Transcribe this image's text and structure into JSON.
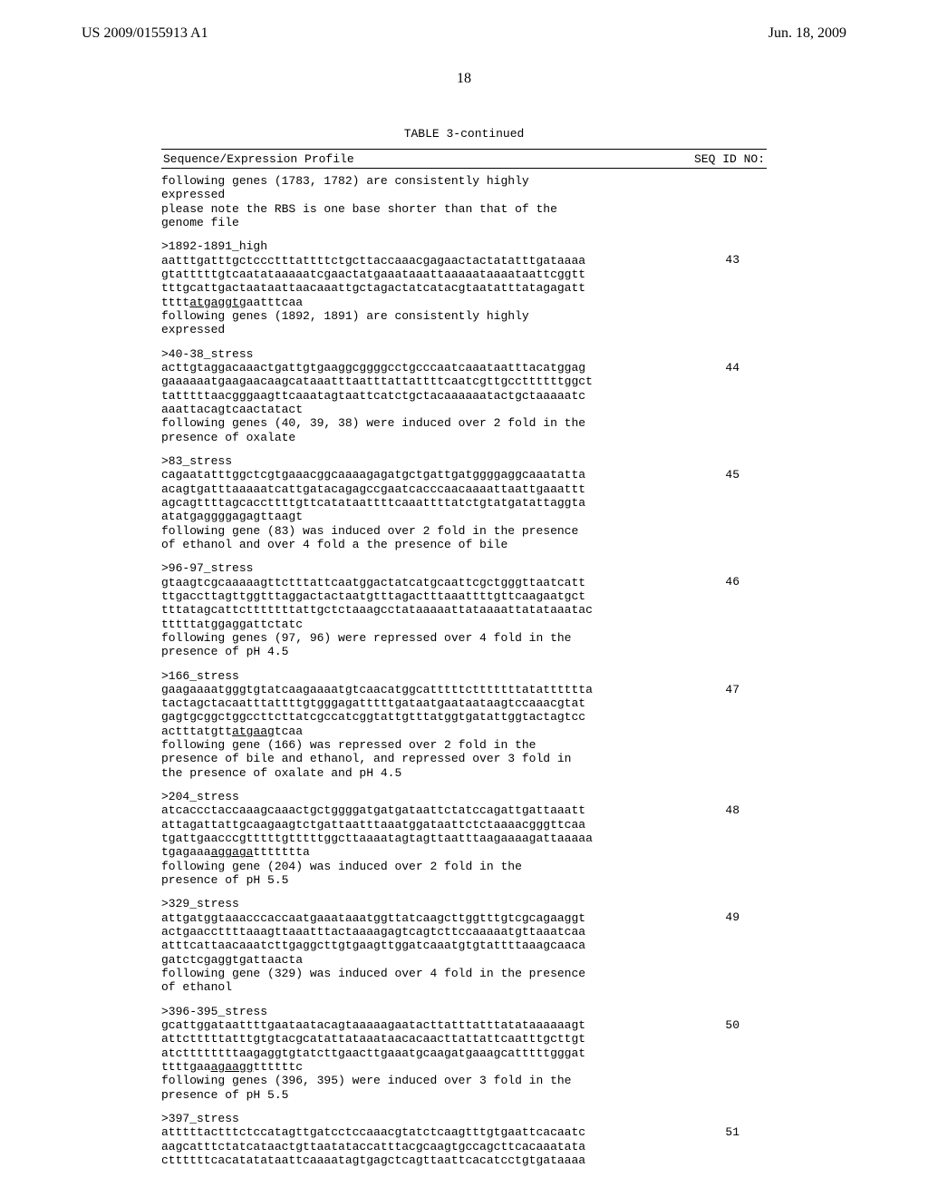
{
  "header": {
    "left": "US 2009/0155913 A1",
    "right": "Jun. 18, 2009",
    "page_number": "18"
  },
  "table": {
    "caption": "TABLE 3-continued",
    "col_left": "Sequence/Expression Profile",
    "col_right": "SEQ ID NO:",
    "rule_color": "#000000",
    "font_family": "Courier New",
    "font_size_pt": 10
  },
  "continuation": {
    "lines": [
      "following genes (1783, 1782) are consistently highly",
      "expressed",
      "please note the RBS is one base shorter than that of the",
      "genome file"
    ]
  },
  "entries": [
    {
      "seq_id": "43",
      "lines": [
        ">1892-1891_high",
        "aatttgatttgctccctttattttctgcttaccaaacgagaactactatatttgataaaa",
        "gtatttttgtcaatataaaaatcgaactatgaaataaattaaaaataaaataattcggtt",
        "tttgcattgactaataattaacaaattgctagactatcatacgtaatatttatagagatt",
        {
          "pre": "tttt",
          "u": "atgaggtg",
          "post": "aatttcaa"
        },
        "following genes (1892, 1891) are consistently highly",
        "expressed"
      ]
    },
    {
      "seq_id": "44",
      "lines": [
        ">40-38_stress",
        "acttgtaggacaaactgattgtgaaggcggggcctgcccaatcaaataatttacatggag",
        "gaaaaaatgaagaacaagcataaatttaatttattattttcaatcgttgccttttttggct",
        "tatttttaacgggaagttcaaatagtaattcatctgctacaaaaaatactgctaaaaatc",
        "aaattacagtcaactatact",
        "following genes (40, 39, 38) were induced over 2 fold in the",
        "presence of oxalate"
      ]
    },
    {
      "seq_id": "45",
      "lines": [
        ">83_stress",
        "cagaatatttggctcgtgaaacggcaaaagagatgctgattgatggggaggcaaatatta",
        "acagtgatttaaaaatcattgatacagagccgaatcacccaacaaaattaattgaaattt",
        "agcagttttagcaccttttgttcatataattttcaaattttatctgtatgatattaggta",
        "atatgaggggagagttaagt",
        "following gene (83) was induced over 2 fold in the presence",
        "of ethanol and over 4 fold a the presence of bile"
      ]
    },
    {
      "seq_id": "46",
      "lines": [
        ">96-97_stress",
        "gtaagtcgcaaaaagttctttattcaatggactatcatgcaattcgctgggttaatcatt",
        "ttgaccttagttggtttaggactactaatgtttagactttaaattttgttcaagaatgct",
        "tttatagcattctttttttattgctctaaagcctataaaaattataaaattatataaatac",
        "tttttatggaggattctatc",
        "following genes (97, 96) were repressed over 4 fold in the",
        "presence of pH 4.5"
      ]
    },
    {
      "seq_id": "47",
      "lines": [
        ">166_stress",
        "gaagaaaatgggtgtatcaagaaaatgtcaacatggcatttttctttttttatatttttta",
        "tactagctacaatttattttgtgggagatttttgataatgaataataagtccaaacgtat",
        "gagtgcggctggccttcttatcgccatcggtattgtttatggtgatattggtactagtcc",
        {
          "pre": "actttatgtt",
          "u": "atgaag",
          "post": "tcaa"
        },
        "following gene (166) was repressed over 2 fold in the",
        "presence of bile and ethanol, and repressed over 3 fold in",
        "the presence of oxalate and pH 4.5"
      ]
    },
    {
      "seq_id": "48",
      "lines": [
        ">204_stress",
        "atcaccctaccaaagcaaactgctggggatgatgataattctatccagattgattaaatt",
        "attagattattgcaagaagtctgattaatttaaatggataattctctaaaacgggttcaa",
        "tgattgaacccgtttttgtttttggcttaaaatagtagttaatttaagaaaagattaaaaa",
        {
          "pre": "tgagaaa",
          "u": "aggaga",
          "post": "ttttttta"
        },
        "following gene (204) was induced over 2 fold in the",
        "presence of pH 5.5"
      ]
    },
    {
      "seq_id": "49",
      "lines": [
        ">329_stress",
        "attgatggtaaacccaccaatgaaataaatggttatcaagcttggtttgtcgcagaaggt",
        "actgaaccttttaaagttaaatttactaaaagagtcagtcttccaaaaatgttaaatcaa",
        "atttcattaacaaatcttgaggcttgtgaagttggatcaaatgtgtattttaaagcaaca",
        "gatctcgaggtgattaacta",
        "following gene (329) was induced over 4 fold in the presence",
        "of ethanol"
      ]
    },
    {
      "seq_id": "50",
      "lines": [
        ">396-395_stress",
        "gcattggataattttgaataatacagtaaaaagaatacttatttatttatataaaaaagt",
        "attctttttatttgtgtacgcatattataaataacacaacttattattcaatttgcttgt",
        "atcttttttttaagaggtgtatcttgaacttgaaatgcaagatgaaagcatttttgggat",
        {
          "pre": "ttttgaa",
          "u": "agaagg",
          "post": "ttttttc"
        },
        "following genes (396, 395) were induced over 3 fold in the",
        "presence of pH 5.5"
      ]
    },
    {
      "seq_id": "51",
      "lines": [
        ">397_stress",
        "atttttactttctccatagttgatcctccaaacgtatctcaagtttgtgaattcacaatc",
        "aagcatttctatcataactgttaatataccatttacgcaagtgccagcttcacaaatata",
        "cttttttcacatatataattcaaaatagtgagctcagttaattcacatcctgtgataaaa"
      ]
    }
  ]
}
